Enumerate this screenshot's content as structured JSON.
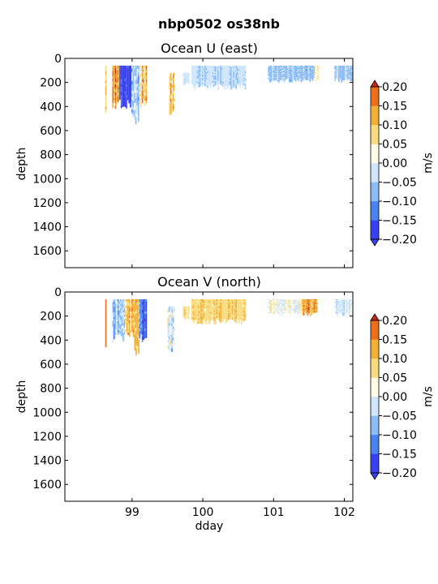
{
  "figure_title": "nbp0502 os38nb",
  "colors": {
    "cmap": [
      "#3a3ff0",
      "#4a82f0",
      "#8cbcf5",
      "#cfe6fb",
      "#fffbe6",
      "#f9dc80",
      "#f2b038",
      "#ea6e1c",
      "#c92a10"
    ]
  },
  "chart_data": [
    {
      "type": "heatmap",
      "title": "Ocean U (east)",
      "xlabel": "",
      "ylabel": "depth",
      "xlim": [
        98.05,
        102.12
      ],
      "ylim": [
        1740,
        0
      ],
      "xticks": [
        99,
        100,
        101,
        102
      ],
      "yticks": [
        0,
        200,
        400,
        600,
        800,
        1000,
        1200,
        1400,
        1600
      ],
      "colorbar": {
        "label": "m/s",
        "levels": [
          -0.2,
          -0.15,
          -0.1,
          -0.05,
          0.0,
          0.05,
          0.1,
          0.15,
          0.2
        ],
        "ticklabels": [
          "−0.20",
          "−0.15",
          "−0.10",
          "−0.05",
          "0.00",
          "0.05",
          "0.10",
          "0.15",
          "0.20"
        ]
      },
      "segments": [
        {
          "x0": 98.62,
          "x1": 98.63,
          "top": 60,
          "bottom": 480,
          "mean": 0.05,
          "spread": 0.08,
          "seed": 11
        },
        {
          "x0": 98.72,
          "x1": 98.82,
          "top": 60,
          "bottom": 420,
          "mean": 0.12,
          "spread": 0.09,
          "seed": 12
        },
        {
          "x0": 98.82,
          "x1": 98.99,
          "top": 60,
          "bottom": 420,
          "mean": -0.19,
          "spread": 0.06,
          "seed": 13
        },
        {
          "x0": 98.99,
          "x1": 99.1,
          "top": 60,
          "bottom": 560,
          "mean": -0.06,
          "spread": 0.1,
          "seed": 14
        },
        {
          "x0": 99.1,
          "x1": 99.21,
          "top": 60,
          "bottom": 420,
          "mean": 0.08,
          "spread": 0.1,
          "seed": 15
        },
        {
          "x0": 99.52,
          "x1": 99.61,
          "top": 120,
          "bottom": 520,
          "mean": 0.1,
          "spread": 0.1,
          "seed": 16
        },
        {
          "x0": 99.72,
          "x1": 99.8,
          "top": 120,
          "bottom": 220,
          "mean": -0.03,
          "spread": 0.03,
          "seed": 17
        },
        {
          "x0": 99.84,
          "x1": 100.6,
          "top": 60,
          "bottom": 260,
          "mean": -0.05,
          "spread": 0.04,
          "seed": 18
        },
        {
          "x0": 100.92,
          "x1": 101.58,
          "top": 60,
          "bottom": 200,
          "mean": -0.06,
          "spread": 0.04,
          "seed": 19
        },
        {
          "x0": 101.58,
          "x1": 101.65,
          "top": 60,
          "bottom": 200,
          "mean": 0.05,
          "spread": 0.04,
          "seed": 20
        },
        {
          "x0": 101.86,
          "x1": 102.12,
          "top": 60,
          "bottom": 200,
          "mean": -0.05,
          "spread": 0.04,
          "seed": 21
        }
      ]
    },
    {
      "type": "heatmap",
      "title": "Ocean V (north)",
      "xlabel": "dday",
      "ylabel": "depth",
      "xlim": [
        98.05,
        102.12
      ],
      "ylim": [
        1740,
        0
      ],
      "xticks": [
        99,
        100,
        101,
        102
      ],
      "yticks": [
        0,
        200,
        400,
        600,
        800,
        1000,
        1200,
        1400,
        1600
      ],
      "colorbar": {
        "label": "m/s",
        "levels": [
          -0.2,
          -0.15,
          -0.1,
          -0.05,
          0.0,
          0.05,
          0.1,
          0.15,
          0.2
        ],
        "ticklabels": [
          "−0.20",
          "−0.15",
          "−0.10",
          "−0.05",
          "0.00",
          "0.05",
          "0.10",
          "0.15",
          "0.20"
        ]
      },
      "segments": [
        {
          "x0": 98.62,
          "x1": 98.63,
          "top": 60,
          "bottom": 480,
          "mean": 0.18,
          "spread": 0.03,
          "seed": 31
        },
        {
          "x0": 98.72,
          "x1": 98.9,
          "top": 60,
          "bottom": 420,
          "mean": -0.05,
          "spread": 0.08,
          "seed": 32
        },
        {
          "x0": 98.9,
          "x1": 99.03,
          "top": 60,
          "bottom": 420,
          "mean": 0.08,
          "spread": 0.08,
          "seed": 33
        },
        {
          "x0": 99.03,
          "x1": 99.1,
          "top": 60,
          "bottom": 560,
          "mean": 0.15,
          "spread": 0.06,
          "seed": 34
        },
        {
          "x0": 99.1,
          "x1": 99.2,
          "top": 60,
          "bottom": 420,
          "mean": -0.14,
          "spread": 0.06,
          "seed": 35
        },
        {
          "x0": 99.5,
          "x1": 99.6,
          "top": 120,
          "bottom": 510,
          "mean": -0.02,
          "spread": 0.09,
          "seed": 36
        },
        {
          "x0": 99.72,
          "x1": 99.8,
          "top": 120,
          "bottom": 240,
          "mean": 0.07,
          "spread": 0.04,
          "seed": 37
        },
        {
          "x0": 99.84,
          "x1": 100.6,
          "top": 60,
          "bottom": 270,
          "mean": 0.09,
          "spread": 0.04,
          "seed": 38
        },
        {
          "x0": 100.92,
          "x1": 101.4,
          "top": 60,
          "bottom": 200,
          "mean": 0.02,
          "spread": 0.06,
          "seed": 39
        },
        {
          "x0": 101.4,
          "x1": 101.62,
          "top": 60,
          "bottom": 200,
          "mean": 0.14,
          "spread": 0.06,
          "seed": 40
        },
        {
          "x0": 101.86,
          "x1": 102.12,
          "top": 60,
          "bottom": 200,
          "mean": -0.02,
          "spread": 0.06,
          "seed": 41
        }
      ]
    }
  ]
}
